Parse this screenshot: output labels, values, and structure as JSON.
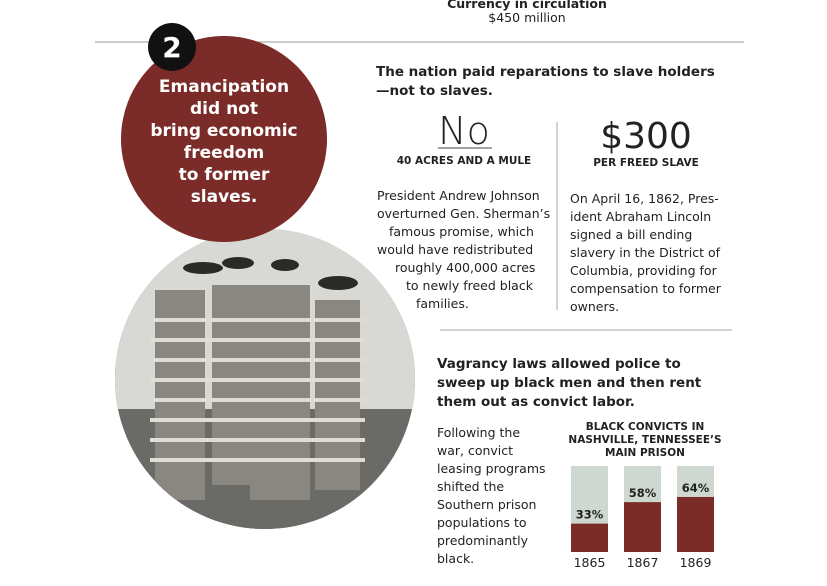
{
  "top": {
    "label": "Currency in circulation",
    "value": "$450 million"
  },
  "badge": "2",
  "headline": [
    "Emancipation",
    "did not",
    "bring economic",
    "freedom",
    "to former",
    "slaves."
  ],
  "section1": {
    "heading": [
      "The nation paid reparations to slave holders",
      "—not to slaves."
    ],
    "left": {
      "big": "No",
      "caption": "40 ACRES AND A MULE",
      "text": [
        "President Andrew Johnson",
        "overturned Gen. Sherman’s",
        "famous promise, which",
        "would have redistributed",
        "roughly 400,000 acres",
        "to newly freed black",
        "families."
      ]
    },
    "right": {
      "big": "$300",
      "caption": "PER FREED SLAVE",
      "text": [
        "On April 16, 1862, Pres-",
        "ident Abraham Lincoln",
        "signed a bill ending",
        "slavery in the District of",
        "Columbia, providing for",
        "compensation to former",
        "owners."
      ]
    }
  },
  "section2": {
    "heading": [
      "Vagrancy laws allowed police to",
      "sweep up black men and then rent",
      "them out as convict labor."
    ],
    "text": [
      "Following the",
      "war, convict",
      "leasing programs",
      "shifted the",
      "Southern prison",
      "populations to",
      "predominantly",
      "black."
    ]
  },
  "chart_data": {
    "type": "bar",
    "title": [
      "BLACK CONVICTS IN",
      "NASHVILLE, TENNESSEE’S",
      "MAIN PRISON"
    ],
    "categories": [
      "1865",
      "1867",
      "1869"
    ],
    "values": [
      33,
      58,
      64
    ],
    "value_labels": [
      "33%",
      "58%",
      "64%"
    ],
    "ylim": [
      0,
      100
    ],
    "color": "#7b2c28",
    "background": "#cfd8d0"
  }
}
